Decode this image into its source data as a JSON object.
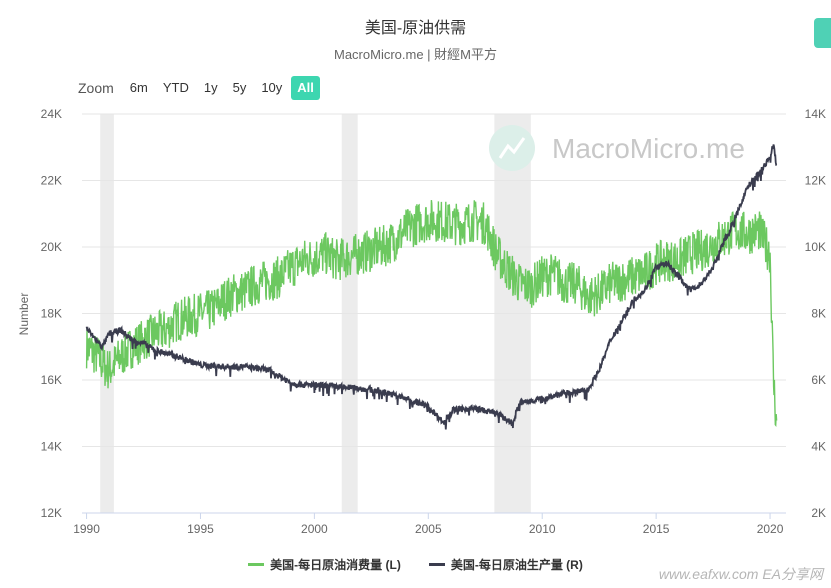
{
  "header": {
    "title": "美国-原油供需",
    "subtitle": "MacroMicro.me | 財經M平方"
  },
  "range_selector": {
    "zoom_label": "Zoom",
    "buttons": [
      "6m",
      "YTD",
      "1y",
      "5y",
      "10y",
      "All"
    ],
    "active": "All"
  },
  "watermark": {
    "brand": "MacroMicro.me",
    "site": "www.eafxw.com  EA分享网"
  },
  "colors": {
    "consumption": "#6cc860",
    "production": "#3a3c4e",
    "recession_band": "#ececec",
    "accent": "#3dd6b0"
  },
  "chart_data": {
    "type": "line",
    "ylabel": "Number",
    "x_ticks": [
      "1990",
      "1995",
      "2000",
      "2005",
      "2010",
      "2015",
      "2020"
    ],
    "y_left_ticks": [
      "12K",
      "14K",
      "16K",
      "18K",
      "20K",
      "22K",
      "24K"
    ],
    "y_right_ticks": [
      "2K",
      "4K",
      "6K",
      "8K",
      "10K",
      "12K",
      "14K"
    ],
    "xlim": [
      1989.8,
      2020.7
    ],
    "ylim_left": [
      12000,
      24000
    ],
    "ylim_right": [
      2000,
      14000
    ],
    "recession_bands": [
      [
        1990.6,
        1991.2
      ],
      [
        2001.2,
        2001.9
      ],
      [
        2007.9,
        2009.5
      ]
    ],
    "legend": [
      {
        "name": "美国-每日原油消费量 (L)",
        "color": "#6cc860"
      },
      {
        "name": "美国-每日原油生产量 (R)",
        "color": "#3a3c4e"
      }
    ],
    "series": [
      {
        "name": "美国-每日原油消费量 (L)",
        "axis": "left",
        "x": [
          1990.0,
          1990.5,
          1990.8,
          1991.0,
          1991.5,
          1992.0,
          1992.5,
          1993.0,
          1993.5,
          1994.0,
          1994.5,
          1995.0,
          1995.5,
          1996.0,
          1996.5,
          1997.0,
          1997.5,
          1998.0,
          1998.5,
          1999.0,
          1999.5,
          2000.0,
          2000.5,
          2001.0,
          2001.5,
          2002.0,
          2002.5,
          2003.0,
          2003.5,
          2004.0,
          2004.5,
          2005.0,
          2005.5,
          2006.0,
          2006.5,
          2007.0,
          2007.5,
          2008.0,
          2008.5,
          2009.0,
          2009.5,
          2010.0,
          2010.5,
          2011.0,
          2011.5,
          2012.0,
          2012.5,
          2013.0,
          2013.5,
          2014.0,
          2014.5,
          2015.0,
          2015.5,
          2016.0,
          2016.5,
          2017.0,
          2017.5,
          2018.0,
          2018.5,
          2019.0,
          2019.5,
          2020.0,
          2020.15,
          2020.3
        ],
        "values": [
          17000,
          16700,
          16400,
          16300,
          16700,
          17000,
          17200,
          17400,
          17500,
          17800,
          17900,
          18000,
          18100,
          18400,
          18600,
          18700,
          18900,
          19000,
          19100,
          19400,
          19600,
          19700,
          19800,
          19600,
          19700,
          19800,
          19900,
          20000,
          20200,
          20500,
          20700,
          20800,
          20800,
          20700,
          20700,
          20800,
          20700,
          19800,
          19300,
          18900,
          18800,
          19100,
          19200,
          18900,
          18900,
          18500,
          18600,
          18900,
          19000,
          19100,
          19200,
          19500,
          19600,
          19600,
          19800,
          19900,
          20100,
          20300,
          20500,
          20400,
          20500,
          19800,
          16000,
          14500
        ],
        "noise": 650
      },
      {
        "name": "美国-每日原油生产量 (R)",
        "axis": "right",
        "x": [
          1990.0,
          1990.3,
          1990.7,
          1991.0,
          1991.5,
          1992.0,
          1992.5,
          1993.0,
          1993.5,
          1994.0,
          1995.0,
          1996.0,
          1997.0,
          1998.0,
          1999.0,
          1999.6,
          2000.0,
          2001.0,
          2002.0,
          2003.0,
          2004.0,
          2005.0,
          2005.7,
          2006.0,
          2007.0,
          2008.0,
          2008.7,
          2009.0,
          2010.0,
          2011.0,
          2011.5,
          2012.0,
          2012.5,
          2013.0,
          2013.5,
          2014.0,
          2014.5,
          2015.0,
          2015.5,
          2016.0,
          2016.5,
          2017.0,
          2017.5,
          2018.0,
          2018.5,
          2019.0,
          2019.5,
          2020.0,
          2020.15,
          2020.3
        ],
        "values": [
          7550,
          7300,
          7000,
          7400,
          7500,
          7200,
          7100,
          6900,
          6800,
          6700,
          6450,
          6400,
          6400,
          6300,
          5900,
          5850,
          5850,
          5800,
          5750,
          5650,
          5450,
          5200,
          4700,
          5100,
          5150,
          5000,
          4700,
          5300,
          5450,
          5600,
          5650,
          5700,
          6300,
          7200,
          7800,
          8400,
          8700,
          9400,
          9500,
          9100,
          8700,
          8900,
          9400,
          10200,
          10900,
          11800,
          12200,
          12700,
          13100,
          12400
        ],
        "noise": 90
      }
    ]
  }
}
